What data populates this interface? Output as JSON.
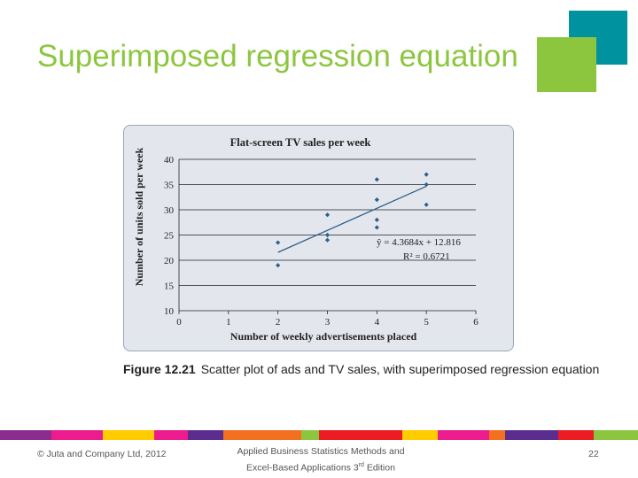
{
  "slide": {
    "title": "Superimposed regression equation",
    "caption_label": "Figure 12.21",
    "caption_text": "Scatter plot of ads and TV sales, with superimposed regression equation"
  },
  "footer": {
    "copyright": "© Juta and Company Ltd, 2012",
    "book_line1": "Applied Business Statistics Methods and",
    "book_line2_pre": "Excel-Based Applications 3",
    "book_line2_sup": "rd",
    "book_line2_post": " Edition",
    "page": "22"
  },
  "colors": {
    "title": "#8cc63f",
    "teal_square": "#00929f",
    "green_square": "#8cc63f",
    "points": "#2e5f8a",
    "regression_line": "#2e5f8a",
    "panel": "#e3e7ed",
    "bar_segments": [
      "#8b2d8f",
      "#ec1c8e",
      "#ffcc00",
      "#ec1c8e",
      "#5b2d8e",
      "#f37021",
      "#8cc63f",
      "#ed1c24",
      "#ffcc00",
      "#ec1c8e",
      "#f37021",
      "#5b2d8e",
      "#ed1c24",
      "#8cc63f"
    ]
  },
  "chart_data": {
    "type": "scatter",
    "title": "Flat-screen TV sales per week",
    "xlabel": "Number of weekly advertisements placed",
    "ylabel": "Number of units sold per week",
    "xlim": [
      0,
      6
    ],
    "ylim": [
      10,
      40
    ],
    "xticks": [
      "0",
      "1",
      "2",
      "3",
      "4",
      "5",
      "6"
    ],
    "yticks": [
      "10",
      "15",
      "20",
      "25",
      "30",
      "35",
      "40"
    ],
    "grid": "horizontal",
    "points": [
      {
        "x": 2,
        "y": 23.5
      },
      {
        "x": 2,
        "y": 19
      },
      {
        "x": 3,
        "y": 29
      },
      {
        "x": 3,
        "y": 25
      },
      {
        "x": 3,
        "y": 24
      },
      {
        "x": 4,
        "y": 36
      },
      {
        "x": 4,
        "y": 32
      },
      {
        "x": 4,
        "y": 28
      },
      {
        "x": 4,
        "y": 26.5
      },
      {
        "x": 5,
        "y": 37
      },
      {
        "x": 5,
        "y": 35
      },
      {
        "x": 5,
        "y": 31
      }
    ],
    "regression": {
      "slope": 4.3684,
      "intercept": 12.816,
      "x_from": 2,
      "x_to": 5,
      "equation": "ŷ = 4.3684x + 12.816",
      "r_squared": "R² = 0.6721"
    }
  }
}
